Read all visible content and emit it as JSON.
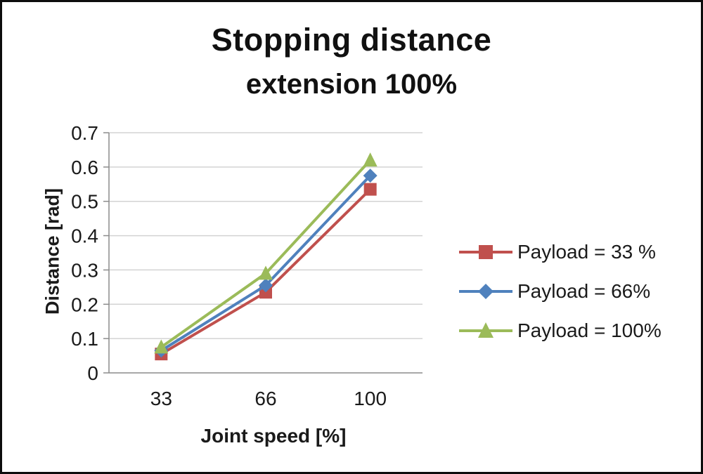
{
  "chart": {
    "title_line1": "Stopping distance",
    "title_line2": "extension 100%"
  },
  "chart_data": {
    "type": "line",
    "title": "Stopping distance extension 100%",
    "categories": [
      "33",
      "66",
      "100"
    ],
    "xlabel": "Joint speed [%]",
    "ylabel": "Distance [rad]",
    "ylim": [
      0,
      0.7
    ],
    "ytick_step": 0.1,
    "grid": true,
    "legend_position": "right",
    "colors": {
      "gridline": "#d3d3d3",
      "axis": "#8c8c8c",
      "text": "#1a1a1a"
    },
    "series": [
      {
        "name": "Payload = 33 %",
        "values": [
          0.055,
          0.235,
          0.535
        ],
        "color": "#C0504D",
        "marker": "square"
      },
      {
        "name": "Payload =  66%",
        "values": [
          0.065,
          0.255,
          0.575
        ],
        "color": "#4F81BD",
        "marker": "diamond"
      },
      {
        "name": "Payload =  100%",
        "values": [
          0.075,
          0.29,
          0.62
        ],
        "color": "#9BBB59",
        "marker": "triangle"
      }
    ]
  }
}
